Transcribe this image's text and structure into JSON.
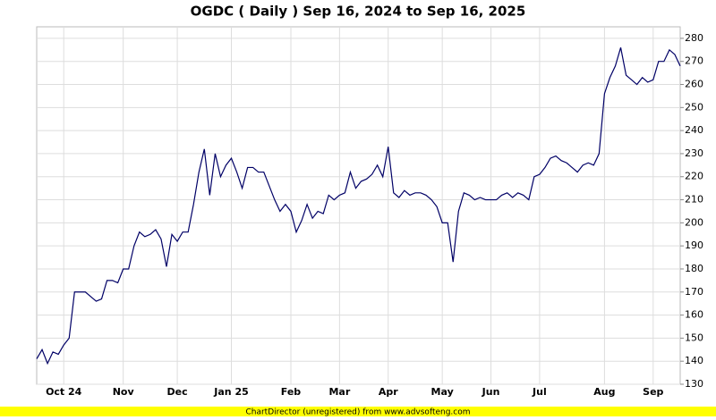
{
  "chart_data": {
    "type": "line",
    "title": "OGDC ( Daily ) Sep 16, 2024 to Sep 16, 2025",
    "footer": "ChartDirector (unregistered) from www.advsofteng.com",
    "categories": [
      null,
      null,
      null,
      null,
      null,
      "Oct 24",
      null,
      null,
      null,
      null,
      null,
      null,
      null,
      null,
      null,
      null,
      "Nov",
      null,
      null,
      null,
      null,
      null,
      null,
      null,
      null,
      null,
      "Dec",
      null,
      null,
      null,
      null,
      null,
      null,
      null,
      null,
      null,
      "Jan 25",
      null,
      null,
      null,
      null,
      null,
      null,
      null,
      null,
      null,
      null,
      "Feb",
      null,
      null,
      null,
      null,
      null,
      null,
      null,
      null,
      "Mar",
      null,
      null,
      null,
      null,
      null,
      null,
      null,
      null,
      "Apr",
      null,
      null,
      null,
      null,
      null,
      null,
      null,
      null,
      null,
      "May",
      null,
      null,
      null,
      null,
      null,
      null,
      null,
      null,
      "Jun",
      null,
      null,
      null,
      null,
      null,
      null,
      null,
      null,
      "Jul",
      null,
      null,
      null,
      null,
      null,
      null,
      null,
      null,
      null,
      null,
      null,
      "Aug",
      null,
      null,
      null,
      null,
      null,
      null,
      null,
      null,
      "Sep",
      null,
      null,
      null,
      null,
      null
    ],
    "series": [
      {
        "name": "OGDC",
        "color": "#000066",
        "values": [
          141,
          145,
          139,
          144,
          143,
          147,
          150,
          170,
          170,
          170,
          168,
          166,
          167,
          175,
          175,
          174,
          180,
          180,
          190,
          196,
          194,
          195,
          197,
          193,
          181,
          195,
          192,
          196,
          196,
          208,
          222,
          232,
          212,
          230,
          220,
          225,
          228,
          222,
          215,
          224,
          224,
          222,
          222,
          216,
          210,
          205,
          208,
          205,
          196,
          201,
          208,
          202,
          205,
          204,
          212,
          210,
          212,
          213,
          222,
          215,
          218,
          219,
          221,
          225,
          220,
          233,
          213,
          211,
          214,
          212,
          213,
          213,
          212,
          210,
          207,
          200,
          200,
          183,
          205,
          213,
          212,
          210,
          211,
          210,
          210,
          210,
          212,
          213,
          211,
          213,
          212,
          210,
          220,
          221,
          224,
          228,
          229,
          227,
          226,
          224,
          222,
          225,
          226,
          225,
          230,
          256,
          263,
          268,
          276,
          264,
          262,
          260,
          263,
          261,
          262,
          270,
          270,
          275,
          273,
          268
        ]
      }
    ],
    "ylim": [
      130,
      285
    ],
    "yticks": [
      130,
      140,
      150,
      160,
      170,
      180,
      190,
      200,
      210,
      220,
      230,
      240,
      250,
      260,
      270,
      280
    ],
    "grid": true
  }
}
